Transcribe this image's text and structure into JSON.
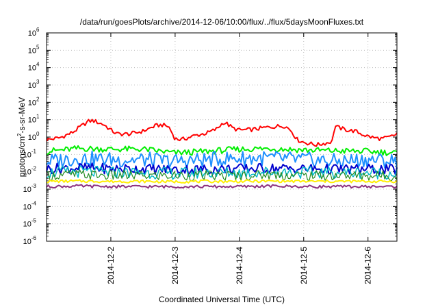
{
  "chart_data": {
    "type": "line",
    "title": "/data/run/goesPlots/archive/2014-12-06/10:00/flux/../flux/5daysMoonFluxes.txt",
    "xlabel": "Coordinated Universal Time (UTC)",
    "ylabel": {
      "prefix": "protons/cm",
      "sup": "2",
      "suffix": "-s-sr-MeV"
    },
    "yscale": "log",
    "ylim_exp": [
      -6,
      6
    ],
    "y_tick_labels": [
      {
        "base": "10",
        "exp": "-6"
      },
      {
        "base": "10",
        "exp": "-5"
      },
      {
        "base": "10",
        "exp": "-4"
      },
      {
        "base": "10",
        "exp": "-3"
      },
      {
        "base": "10",
        "exp": "-2"
      },
      {
        "base": "10",
        "exp": "-1"
      },
      {
        "base": "10",
        "exp": "0"
      },
      {
        "base": "10",
        "exp": "1"
      },
      {
        "base": "10",
        "exp": "2"
      },
      {
        "base": "10",
        "exp": "3"
      },
      {
        "base": "10",
        "exp": "4"
      },
      {
        "base": "10",
        "exp": "5"
      },
      {
        "base": "10",
        "exp": "6"
      }
    ],
    "xlim_days": [
      1.0,
      6.45
    ],
    "x_ticks": [
      {
        "day": 2,
        "label": "2014-12-2"
      },
      {
        "day": 3,
        "label": "2014-12-3"
      },
      {
        "day": 4,
        "label": "2014-12-4"
      },
      {
        "day": 5,
        "label": "2014-12-5"
      },
      {
        "day": 6,
        "label": "2014-12-6"
      }
    ],
    "grid": true,
    "legend": "none",
    "series": [
      {
        "color": "#ff0000",
        "width": 2,
        "x": [
          1.0,
          1.2,
          1.4,
          1.55,
          1.65,
          1.72,
          1.8,
          1.9,
          2.0,
          2.1,
          2.3,
          2.5,
          2.7,
          2.8,
          2.9,
          3.0,
          3.1,
          3.3,
          3.5,
          3.65,
          3.75,
          3.8,
          3.9,
          4.0,
          4.2,
          4.4,
          4.6,
          4.7,
          4.8,
          4.9,
          5.0,
          5.2,
          5.4,
          5.45,
          5.48,
          5.5,
          5.55,
          5.6,
          5.7,
          5.8,
          5.9,
          6.0,
          6.1,
          6.2,
          6.3,
          6.4,
          6.45
        ],
        "values": [
          0.7,
          0.9,
          1.8,
          4.5,
          8,
          9,
          7,
          5,
          2.5,
          1.5,
          1.5,
          2.2,
          4.5,
          5,
          4,
          0.8,
          0.7,
          1.2,
          1.7,
          3,
          7,
          6,
          3.2,
          2.5,
          2.7,
          3.5,
          4.2,
          4.5,
          2.5,
          0.7,
          0.5,
          0.35,
          0.5,
          0.6,
          4.5,
          4,
          3.4,
          3,
          2.4,
          2.2,
          1.5,
          1.1,
          0.9,
          0.8,
          0.9,
          1.2,
          1.6
        ]
      },
      {
        "color": "#00ee00",
        "width": 2,
        "x": [
          1.0,
          1.5,
          2.0,
          2.5,
          3.0,
          3.5,
          4.0,
          4.5,
          5.0,
          5.5,
          6.0,
          6.45
        ],
        "values": [
          0.15,
          0.22,
          0.2,
          0.2,
          0.12,
          0.15,
          0.2,
          0.22,
          0.18,
          0.16,
          0.15,
          0.12
        ]
      },
      {
        "color": "#1e90ff",
        "width": 2,
        "x": [
          1.0,
          1.5,
          2.0,
          2.5,
          3.0,
          3.5,
          4.0,
          4.5,
          5.0,
          5.5,
          6.0,
          6.45
        ],
        "values": [
          0.04,
          0.06,
          0.05,
          0.05,
          0.04,
          0.05,
          0.06,
          0.06,
          0.05,
          0.04,
          0.05,
          0.04
        ]
      },
      {
        "color": "#0000cd",
        "width": 2,
        "x": [
          1.0,
          1.5,
          2.0,
          2.5,
          3.0,
          3.5,
          4.0,
          4.5,
          5.0,
          5.5,
          6.0,
          6.45
        ],
        "values": [
          0.015,
          0.017,
          0.015,
          0.015,
          0.013,
          0.014,
          0.015,
          0.016,
          0.015,
          0.014,
          0.014,
          0.013
        ]
      },
      {
        "color": "#00b8c8",
        "width": 1.5,
        "x": [
          1.0,
          1.5,
          2.0,
          2.5,
          3.0,
          3.5,
          4.0,
          4.5,
          5.0,
          5.5,
          6.0,
          6.45
        ],
        "values": [
          0.009,
          0.01,
          0.009,
          0.009,
          0.008,
          0.009,
          0.009,
          0.01,
          0.009,
          0.009,
          0.009,
          0.008
        ]
      },
      {
        "color": "#228b22",
        "width": 1.2,
        "x": [
          1.0,
          1.5,
          2.0,
          2.5,
          3.0,
          3.5,
          4.0,
          4.5,
          5.0,
          5.5,
          6.0,
          6.45
        ],
        "values": [
          0.006,
          0.007,
          0.006,
          0.006,
          0.006,
          0.006,
          0.006,
          0.007,
          0.006,
          0.006,
          0.006,
          0.006
        ]
      },
      {
        "color": "#ffee00",
        "width": 2,
        "x": [
          1.0,
          1.5,
          2.0,
          2.5,
          3.0,
          3.5,
          4.0,
          4.5,
          5.0,
          5.5,
          6.0,
          6.45
        ],
        "values": [
          0.0028,
          0.0029,
          0.0028,
          0.0028,
          0.0027,
          0.0028,
          0.0028,
          0.0029,
          0.0028,
          0.0028,
          0.0028,
          0.0028
        ]
      },
      {
        "color": "#8b2f7e",
        "width": 2,
        "x": [
          1.0,
          1.5,
          2.0,
          2.5,
          3.0,
          3.5,
          4.0,
          4.5,
          5.0,
          5.5,
          6.0,
          6.45
        ],
        "values": [
          0.0014,
          0.0015,
          0.0014,
          0.0014,
          0.0014,
          0.0014,
          0.0014,
          0.0015,
          0.0014,
          0.0014,
          0.0014,
          0.0014
        ]
      }
    ]
  }
}
